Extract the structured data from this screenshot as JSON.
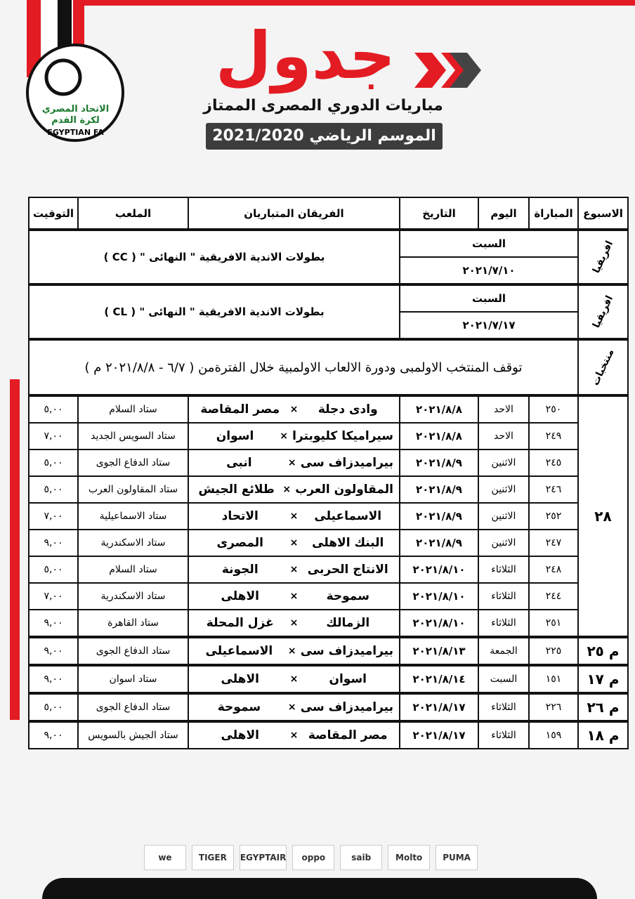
{
  "header": {
    "title": "جدول",
    "subtitle": "مباريات الدوري المصرى الممتاز",
    "season": "الموسم الرياضي 2021/2020"
  },
  "logo": {
    "arabic_name": "الاتحاد المصري لكرة القدم",
    "english_name": "EGYPTIAN FA"
  },
  "table": {
    "columns": [
      "الاسبوع",
      "المباراة",
      "اليوم",
      "التاريخ",
      "الفريقان المتباريان",
      "الملعب",
      "التوقيت"
    ],
    "separator": "×",
    "special_rows": [
      {
        "week": "افريقيا",
        "day": "السبت",
        "date": "٢٠٢١/٧/١٠",
        "text": "بطولات الاندية الافريقية \" النهائى \" ( CC )"
      },
      {
        "week": "افريقيا",
        "day": "السبت",
        "date": "٢٠٢١/٧/١٧",
        "text": "بطولات الاندية الافريقية \" النهائى \" ( CL )"
      }
    ],
    "break_row": {
      "week": "منتخبات",
      "text": "توقف المنتخب الاولمبى ودورة الالعاب الاولمبية خلال الفترةمن ( ٦/٧ - ٢٠٢١/٨/٨ م )"
    },
    "week_groups": [
      {
        "week": "٢٨",
        "matches": [
          {
            "match": "٢٥٠",
            "day": "الاحد",
            "date": "٢٠٢١/٨/٨",
            "home": "وادى دجلة",
            "away": "مصر المقاصة",
            "stadium": "ستاد السلام",
            "time": "٥,٠٠"
          },
          {
            "match": "٢٤٩",
            "day": "الاحد",
            "date": "٢٠٢١/٨/٨",
            "home": "سيراميكا كليوبترا",
            "away": "اسوان",
            "stadium": "ستاد السويس الجديد",
            "time": "٧,٠٠"
          },
          {
            "match": "٢٤٥",
            "day": "الاثنين",
            "date": "٢٠٢١/٨/٩",
            "home": "بيراميدزاف سى",
            "away": "انبى",
            "stadium": "ستاد الدفاع الجوى",
            "time": "٥,٠٠"
          },
          {
            "match": "٢٤٦",
            "day": "الاثنين",
            "date": "٢٠٢١/٨/٩",
            "home": "المقاولون العرب",
            "away": "طلائع الجيش",
            "stadium": "ستاد المقاولون العرب",
            "time": "٥,٠٠"
          },
          {
            "match": "٢٥٢",
            "day": "الاثنين",
            "date": "٢٠٢١/٨/٩",
            "home": "الاسماعيلى",
            "away": "الاتحاد",
            "stadium": "ستاد الاسماعيلية",
            "time": "٧,٠٠"
          },
          {
            "match": "٢٤٧",
            "day": "الاثنين",
            "date": "٢٠٢١/٨/٩",
            "home": "البنك الاهلى",
            "away": "المصرى",
            "stadium": "ستاد الاسكندرية",
            "time": "٩,٠٠"
          },
          {
            "match": "٢٤٨",
            "day": "الثلاثاء",
            "date": "٢٠٢١/٨/١٠",
            "home": "الانتاج الحربى",
            "away": "الجونة",
            "stadium": "ستاد السلام",
            "time": "٥,٠٠"
          },
          {
            "match": "٢٤٤",
            "day": "الثلاثاء",
            "date": "٢٠٢١/٨/١٠",
            "home": "سموحة",
            "away": "الاهلى",
            "stadium": "ستاد الاسكندرية",
            "time": "٧,٠٠"
          },
          {
            "match": "٢٥١",
            "day": "الثلاثاء",
            "date": "٢٠٢١/٨/١٠",
            "home": "الزمالك",
            "away": "غزل المحلة",
            "stadium": "ستاد القاهرة",
            "time": "٩,٠٠"
          }
        ]
      },
      {
        "week": "م ٢٥",
        "matches": [
          {
            "match": "٢٢٥",
            "day": "الجمعة",
            "date": "٢٠٢١/٨/١٣",
            "home": "بيراميدزاف سى",
            "away": "الاسماعيلى",
            "stadium": "ستاد الدفاع الجوى",
            "time": "٩,٠٠"
          }
        ]
      },
      {
        "week": "م ١٧",
        "matches": [
          {
            "match": "١٥١",
            "day": "السبت",
            "date": "٢٠٢١/٨/١٤",
            "home": "اسوان",
            "away": "الاهلى",
            "stadium": "ستاد اسوان",
            "time": "٩,٠٠"
          }
        ]
      },
      {
        "week": "م ٢٦",
        "matches": [
          {
            "match": "٢٢٦",
            "day": "الثلاثاء",
            "date": "٢٠٢١/٨/١٧",
            "home": "بيراميدزاف سى",
            "away": "سموحة",
            "stadium": "ستاد الدفاع الجوى",
            "time": "٥,٠٠"
          }
        ]
      },
      {
        "week": "م ١٨",
        "matches": [
          {
            "match": "١٥٩",
            "day": "الثلاثاء",
            "date": "٢٠٢١/٨/١٧",
            "home": "مصر المقاصة",
            "away": "الاهلى",
            "stadium": "ستاد الجيش بالسويس",
            "time": "٩,٠٠"
          }
        ]
      }
    ]
  },
  "sponsors": [
    "we",
    "TIGER",
    "EGYPTAIR",
    "oppo",
    "saib",
    "Molto",
    "PUMA"
  ]
}
